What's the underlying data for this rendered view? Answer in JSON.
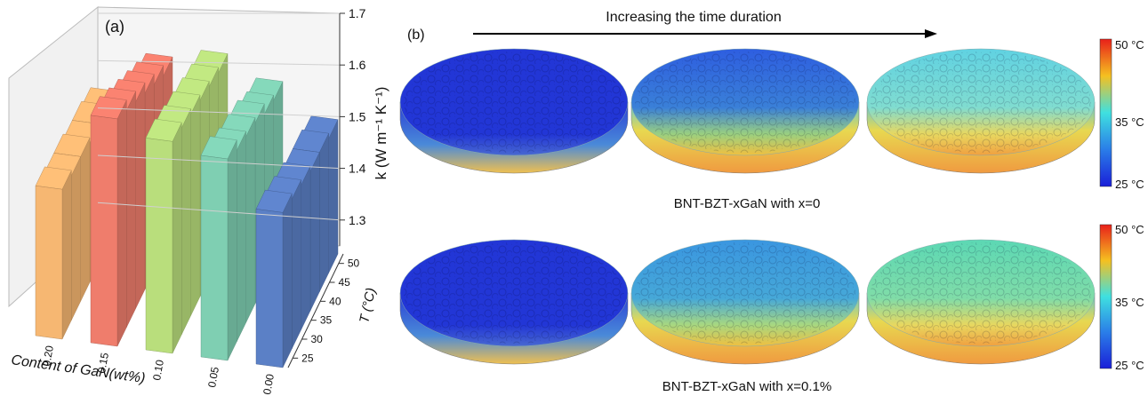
{
  "chart_data": {
    "type": "bar3d",
    "panel_label": "(a)",
    "x_label": "T (°C)",
    "y_label": "Content of GaN(wt%)",
    "z_label": "k (W m⁻¹ K⁻¹)",
    "x": [
      25,
      30,
      35,
      40,
      45,
      50
    ],
    "xlim": [
      22.5,
      52.5
    ],
    "xticks": [
      25,
      30,
      35,
      40,
      45,
      50
    ],
    "zlim": [
      1.25,
      1.7
    ],
    "zticks": [
      1.3,
      1.4,
      1.5,
      1.6,
      1.7
    ],
    "series": [
      {
        "name": "0.20",
        "color": "#f6b772",
        "values": [
          1.54,
          1.53,
          1.53,
          1.52,
          1.52,
          1.51
        ]
      },
      {
        "name": "0.15",
        "color": "#ef7d6c",
        "values": [
          1.69,
          1.67,
          1.65,
          1.63,
          1.61,
          1.59
        ]
      },
      {
        "name": "0.10",
        "color": "#b9de7c",
        "values": [
          1.66,
          1.65,
          1.64,
          1.63,
          1.62,
          1.61
        ]
      },
      {
        "name": "0.05",
        "color": "#7fcfb2",
        "values": [
          1.64,
          1.62,
          1.61,
          1.6,
          1.58,
          1.57
        ]
      },
      {
        "name": "0.00",
        "color": "#5b80c6",
        "values": [
          1.55,
          1.54,
          1.53,
          1.52,
          1.52,
          1.51
        ]
      }
    ]
  },
  "panel_b": {
    "label": "(b)",
    "arrow_text": "Increasing the time duration",
    "rows": [
      {
        "caption": "BNT-BZT-xGaN with x=0",
        "colorbar": [
          "50 °C",
          "35 °C",
          "25 °C"
        ]
      },
      {
        "caption": "BNT-BZT-xGaN with x=0.1%",
        "colorbar": [
          "50 °C",
          "35 °C",
          "25 °C"
        ]
      }
    ]
  }
}
